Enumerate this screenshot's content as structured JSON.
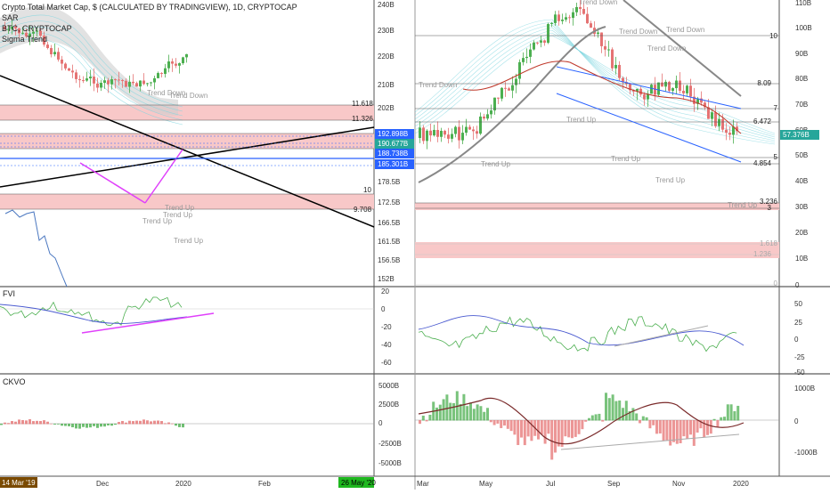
{
  "header": {
    "title": "Crypto Total Market Cap, $ (CALCULATED BY TRADINGVIEW), 1D, CRYPTOCAP",
    "indicators": [
      "SAR",
      "BTC, CRYPTOCAP",
      "Sigma Trend"
    ]
  },
  "colors": {
    "up": "#26a69a",
    "down": "#ef5350",
    "green": "#4caf50",
    "red": "#e57373",
    "blue": "#2962ff",
    "magenta": "#e040fb",
    "zone": "#f8c8c8",
    "grid": "#000000"
  },
  "chart_data": [
    {
      "type": "line",
      "panel": "left-main",
      "y_axis_ticks": [
        "240B",
        "230B",
        "220B",
        "210B",
        "202B",
        "178.5B",
        "172.5B",
        "166.5B",
        "161.5B",
        "156.5B",
        "152B"
      ],
      "x_axis_ticks": [
        "Dec",
        "2020",
        "Feb"
      ],
      "price_labels": [
        {
          "value": "192.898B",
          "color": "#2962ff"
        },
        {
          "value": "190.677B",
          "color": "#26a69a"
        },
        {
          "value": "188.738B",
          "color": "#2962ff"
        },
        {
          "value": "185.301B",
          "color": "#2962ff"
        }
      ],
      "level_labels": [
        "11.618",
        "11.326",
        "10",
        "9.708"
      ],
      "annotations": [
        "Trend Down",
        "Trend Down",
        "Trend Up",
        "Trend Up",
        "Trend Up",
        "Trend Up"
      ],
      "date_labels": [
        {
          "text": "14 Mar '19",
          "color": "#7a4a00"
        },
        {
          "text": "26 May '20",
          "color": "#1fb81f"
        }
      ]
    },
    {
      "type": "line",
      "panel": "left-fvi",
      "label": "FVI",
      "y_axis_ticks": [
        "20",
        "0",
        "-20",
        "-40",
        "-60"
      ]
    },
    {
      "type": "bar",
      "panel": "left-ckvo",
      "label": "CKVO",
      "y_axis_ticks": [
        "5000B",
        "2500B",
        "0",
        "-2500B",
        "-5000B"
      ]
    },
    {
      "type": "line",
      "panel": "right-main",
      "y_axis_ticks": [
        "110B",
        "100B",
        "90B",
        "80B",
        "70B",
        "60B",
        "50B",
        "40B",
        "30B",
        "20B",
        "10B",
        "0"
      ],
      "x_axis_ticks": [
        "Mar",
        "May",
        "Jul",
        "Sep",
        "Nov",
        "2020"
      ],
      "price_labels": [
        {
          "value": "57.376B",
          "color": "#26a69a"
        }
      ],
      "level_labels": [
        "10",
        "8.09",
        "7",
        "6.472",
        "5",
        "4.854",
        "3.236",
        "3",
        "1.618",
        "1.236",
        "0"
      ],
      "annotations": [
        "Trend Down",
        "Trend Down",
        "Trend Down",
        "Trend Down",
        "Trend Down",
        "Trend Up",
        "Trend Up",
        "Trend Up",
        "Trend Up",
        "Trend Up"
      ]
    },
    {
      "type": "line",
      "panel": "right-fvi",
      "y_axis_ticks": [
        "50",
        "25",
        "0",
        "-25",
        "-50"
      ]
    },
    {
      "type": "bar",
      "panel": "right-ckvo",
      "y_axis_ticks": [
        "1000B",
        "0",
        "-1000B"
      ]
    }
  ]
}
